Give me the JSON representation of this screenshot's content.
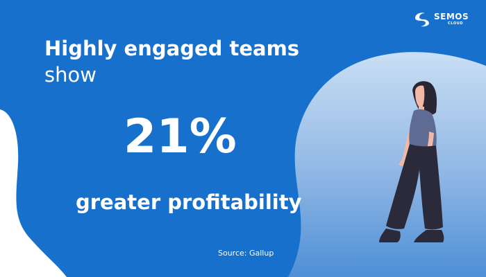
{
  "brand": {
    "name": "SEMOS",
    "sub": "CLOUD",
    "icon": "semos-swirl-icon"
  },
  "headline": {
    "line1": "Highly engaged teams",
    "line2": "show"
  },
  "stat": {
    "value": "21%"
  },
  "caption": "greater profitability",
  "source": "Source: Gallup",
  "illustration": "woman-standing-illustration",
  "colors": {
    "background": "#1670cc",
    "blob_light": "#c9dff4",
    "blob_dark": "#4e8fd6",
    "text": "#ffffff",
    "hair": "#2a2735",
    "shirt": "#5e6b92",
    "pants": "#2b2a3a",
    "skin": "#f2b8a6"
  }
}
